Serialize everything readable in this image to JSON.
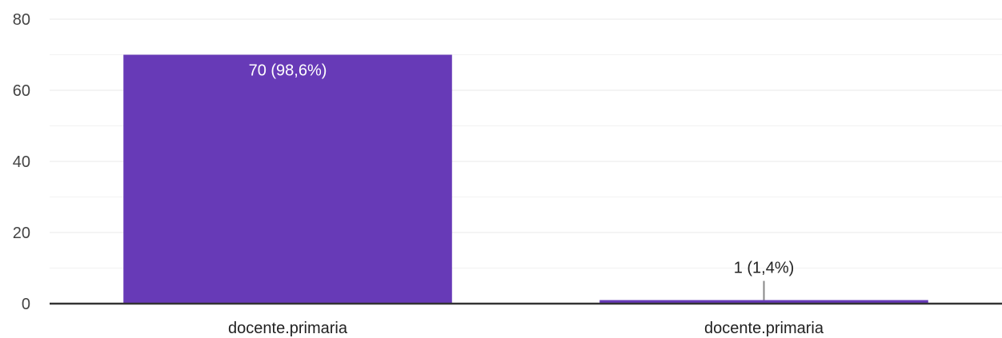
{
  "chart_data": {
    "type": "bar",
    "categories": [
      "docente.primaria",
      "docente.primaria"
    ],
    "values": [
      70,
      1
    ],
    "data_labels": [
      "70 (98,6%)",
      "1 (1,4%)"
    ],
    "title": "",
    "xlabel": "",
    "ylabel": "",
    "ylim": [
      0,
      80
    ],
    "yticks": [
      0,
      20,
      40,
      60,
      80
    ],
    "grid": true,
    "minor_grid": true,
    "legend": "none",
    "bar_color": "#673ab7",
    "axis_color": "#333333",
    "grid_color": "#e8e8e8"
  }
}
